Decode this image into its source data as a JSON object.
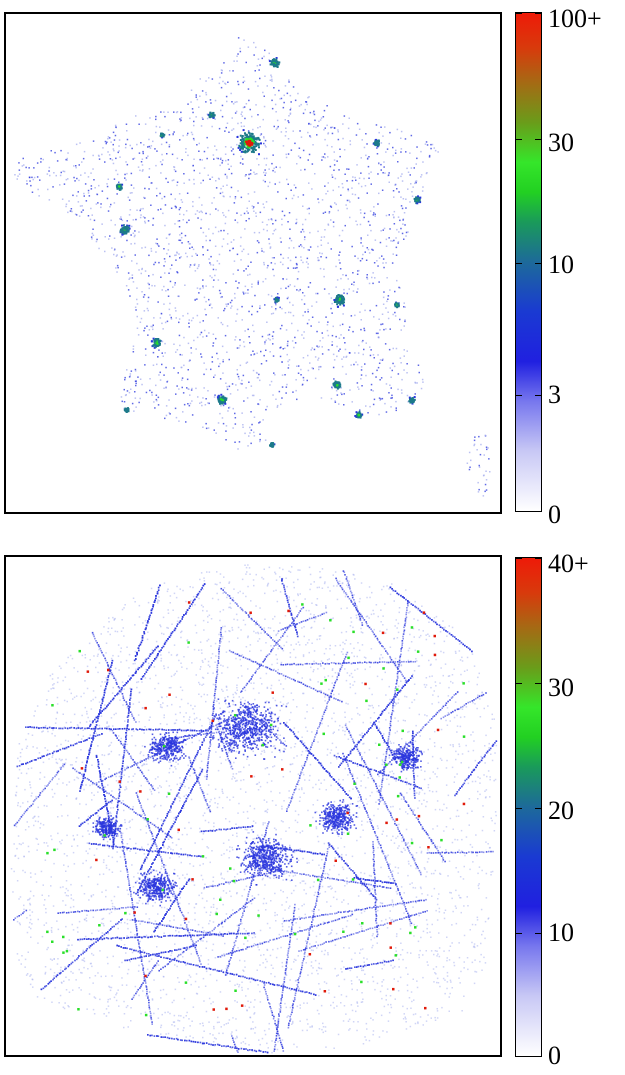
{
  "colors": {
    "background": "#ffffff",
    "dot_light": "#aab2ef",
    "dot_blue": "#2a36dd",
    "dot_teal": "#1d7a8a",
    "dot_green": "#2adf2a",
    "dot_red": "#e01a0a"
  },
  "chart_data": [
    {
      "type": "heatmap",
      "colorbar": {
        "ticks": [
          {
            "label": "100+",
            "value": 100
          },
          {
            "label": "30",
            "value": 30
          },
          {
            "label": "10",
            "value": 10
          },
          {
            "label": "3",
            "value": 3
          },
          {
            "label": "0",
            "value": 0
          }
        ],
        "scale": "log",
        "range": [
          0,
          100
        ]
      },
      "grid": false,
      "legend_placement": "right"
    },
    {
      "type": "heatmap",
      "colorbar": {
        "ticks": [
          {
            "label": "40+",
            "value": 40
          },
          {
            "label": "30",
            "value": 30
          },
          {
            "label": "20",
            "value": 20
          },
          {
            "label": "10",
            "value": 10
          },
          {
            "label": "0",
            "value": 0
          }
        ],
        "scale": "linear",
        "range": [
          0,
          40
        ]
      },
      "grid": false,
      "legend_placement": "right"
    }
  ]
}
